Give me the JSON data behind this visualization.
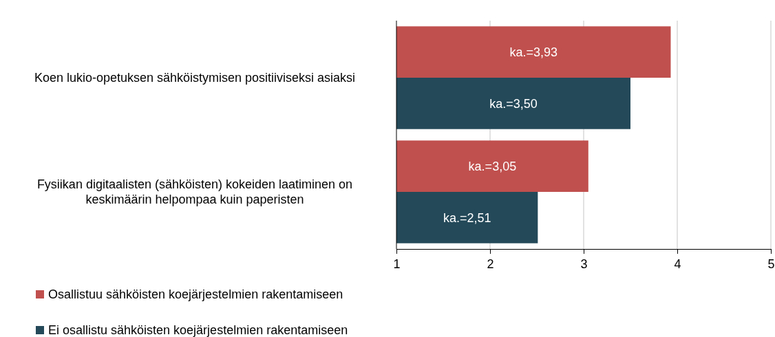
{
  "chart_data": {
    "type": "bar",
    "orientation": "horizontal",
    "categories": [
      "Koen lukio-opetuksen sähköistymisen positiiviseksi asiaksi",
      "Fysiikan digitaalisten (sähköisten) kokeiden laatiminen on keskimäärin helpompaa kuin paperisten"
    ],
    "series": [
      {
        "name": "Osallistuu sähköisten koejärjestelmien rakentamiseen",
        "color": "#c0504d",
        "values": [
          3.93,
          3.05
        ],
        "value_labels": [
          "ka.=3,93",
          "ka.=3,05"
        ]
      },
      {
        "name": "Ei osallistu sähköisten koejärjestelmien rakentamiseen",
        "color": "#244a5a",
        "values": [
          3.5,
          2.51
        ],
        "value_labels": [
          "ka.=3,50",
          "ka.=2,51"
        ]
      }
    ],
    "xlim": [
      1,
      5
    ],
    "xticks": [
      1,
      2,
      3,
      4,
      5
    ],
    "grid": "x",
    "legend": "bottom"
  }
}
